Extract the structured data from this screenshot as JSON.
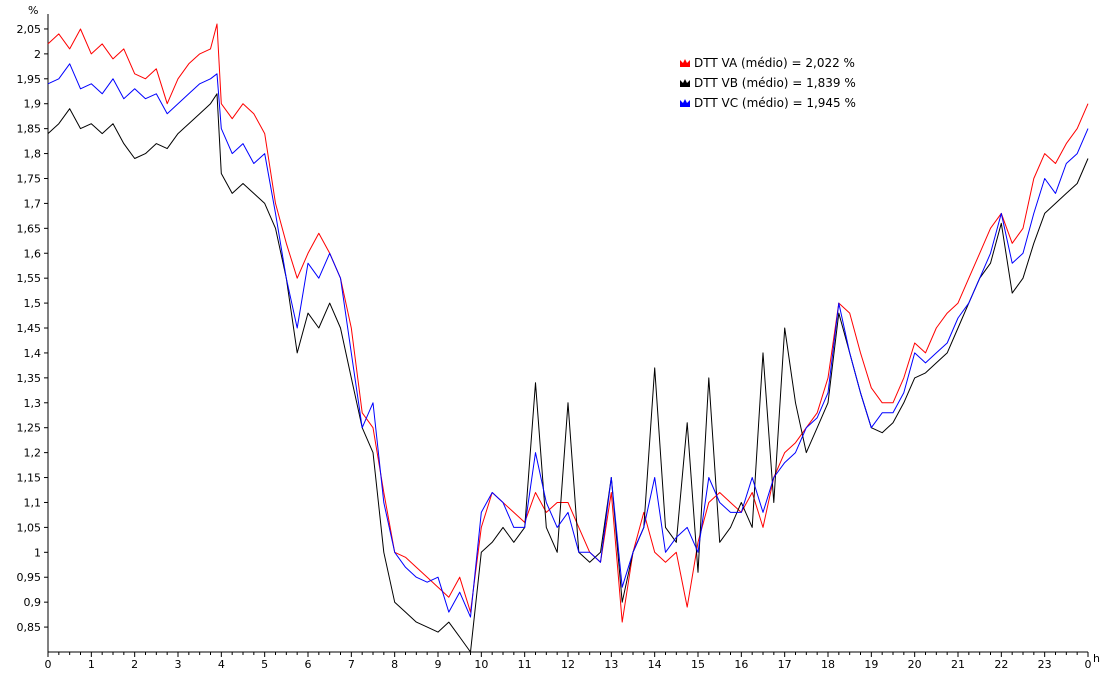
{
  "chart_data": {
    "type": "line",
    "title": "",
    "ylabel": "%",
    "xlabel": "h",
    "ylim": [
      0.8,
      2.08
    ],
    "xlim": [
      0,
      24
    ],
    "y_ticks": [
      0.85,
      0.9,
      0.95,
      1.0,
      1.05,
      1.1,
      1.15,
      1.2,
      1.25,
      1.3,
      1.35,
      1.4,
      1.45,
      1.5,
      1.55,
      1.6,
      1.65,
      1.7,
      1.75,
      1.8,
      1.85,
      1.9,
      1.95,
      2.0,
      2.05
    ],
    "y_tick_labels": [
      "0,85",
      "0,9",
      "0,95",
      "1",
      "1,05",
      "1,1",
      "1,15",
      "1,2",
      "1,25",
      "1,3",
      "1,35",
      "1,4",
      "1,45",
      "1,5",
      "1,55",
      "1,6",
      "1,65",
      "1,7",
      "1,75",
      "1,8",
      "1,85",
      "1,9",
      "1,95",
      "2",
      "2,05"
    ],
    "x_ticks": [
      0,
      1,
      2,
      3,
      4,
      5,
      6,
      7,
      8,
      9,
      10,
      11,
      12,
      13,
      14,
      15,
      16,
      17,
      18,
      19,
      20,
      21,
      22,
      23,
      24
    ],
    "x_tick_labels": [
      "0",
      "1",
      "2",
      "3",
      "4",
      "5",
      "6",
      "7",
      "8",
      "9",
      "10",
      "11",
      "12",
      "13",
      "14",
      "15",
      "16",
      "17",
      "18",
      "19",
      "20",
      "21",
      "22",
      "23",
      "0"
    ],
    "grid": false,
    "legend_position": "top-right",
    "series": [
      {
        "name": "DTT VA (médio) = 2,022 %",
        "color": "#ff0000",
        "points": [
          [
            0,
            2.02
          ],
          [
            0.25,
            2.04
          ],
          [
            0.5,
            2.01
          ],
          [
            0.75,
            2.05
          ],
          [
            1,
            2.0
          ],
          [
            1.25,
            2.02
          ],
          [
            1.5,
            1.99
          ],
          [
            1.75,
            2.01
          ],
          [
            2,
            1.96
          ],
          [
            2.25,
            1.95
          ],
          [
            2.5,
            1.97
          ],
          [
            2.75,
            1.9
          ],
          [
            3,
            1.95
          ],
          [
            3.25,
            1.98
          ],
          [
            3.5,
            2.0
          ],
          [
            3.75,
            2.01
          ],
          [
            3.9,
            2.06
          ],
          [
            4,
            1.9
          ],
          [
            4.25,
            1.87
          ],
          [
            4.5,
            1.9
          ],
          [
            4.75,
            1.88
          ],
          [
            5,
            1.84
          ],
          [
            5.25,
            1.7
          ],
          [
            5.5,
            1.62
          ],
          [
            5.75,
            1.55
          ],
          [
            6,
            1.6
          ],
          [
            6.25,
            1.64
          ],
          [
            6.5,
            1.6
          ],
          [
            6.75,
            1.55
          ],
          [
            7,
            1.45
          ],
          [
            7.25,
            1.28
          ],
          [
            7.5,
            1.25
          ],
          [
            7.75,
            1.12
          ],
          [
            8,
            1.0
          ],
          [
            8.25,
            0.99
          ],
          [
            8.5,
            0.97
          ],
          [
            8.75,
            0.95
          ],
          [
            9,
            0.93
          ],
          [
            9.25,
            0.91
          ],
          [
            9.5,
            0.95
          ],
          [
            9.75,
            0.88
          ],
          [
            10,
            1.05
          ],
          [
            10.25,
            1.12
          ],
          [
            10.5,
            1.1
          ],
          [
            10.75,
            1.08
          ],
          [
            11,
            1.06
          ],
          [
            11.25,
            1.12
          ],
          [
            11.5,
            1.08
          ],
          [
            11.75,
            1.1
          ],
          [
            12,
            1.1
          ],
          [
            12.25,
            1.05
          ],
          [
            12.5,
            1.0
          ],
          [
            12.75,
            0.98
          ],
          [
            13,
            1.12
          ],
          [
            13.25,
            0.86
          ],
          [
            13.5,
            1.0
          ],
          [
            13.75,
            1.08
          ],
          [
            14,
            1.0
          ],
          [
            14.25,
            0.98
          ],
          [
            14.5,
            1.0
          ],
          [
            14.75,
            0.89
          ],
          [
            15,
            1.02
          ],
          [
            15.25,
            1.1
          ],
          [
            15.5,
            1.12
          ],
          [
            15.75,
            1.1
          ],
          [
            16,
            1.08
          ],
          [
            16.25,
            1.12
          ],
          [
            16.5,
            1.05
          ],
          [
            16.75,
            1.15
          ],
          [
            17,
            1.2
          ],
          [
            17.25,
            1.22
          ],
          [
            17.5,
            1.25
          ],
          [
            17.75,
            1.28
          ],
          [
            18,
            1.35
          ],
          [
            18.25,
            1.5
          ],
          [
            18.5,
            1.48
          ],
          [
            18.75,
            1.4
          ],
          [
            19,
            1.33
          ],
          [
            19.25,
            1.3
          ],
          [
            19.5,
            1.3
          ],
          [
            19.75,
            1.35
          ],
          [
            20,
            1.42
          ],
          [
            20.25,
            1.4
          ],
          [
            20.5,
            1.45
          ],
          [
            20.75,
            1.48
          ],
          [
            21,
            1.5
          ],
          [
            21.25,
            1.55
          ],
          [
            21.5,
            1.6
          ],
          [
            21.75,
            1.65
          ],
          [
            22,
            1.68
          ],
          [
            22.25,
            1.62
          ],
          [
            22.5,
            1.65
          ],
          [
            22.75,
            1.75
          ],
          [
            23,
            1.8
          ],
          [
            23.25,
            1.78
          ],
          [
            23.5,
            1.82
          ],
          [
            23.75,
            1.85
          ],
          [
            24,
            1.9
          ]
        ]
      },
      {
        "name": "DTT VB (médio) = 1,839 %",
        "color": "#000000",
        "points": [
          [
            0,
            1.84
          ],
          [
            0.25,
            1.86
          ],
          [
            0.5,
            1.89
          ],
          [
            0.75,
            1.85
          ],
          [
            1,
            1.86
          ],
          [
            1.25,
            1.84
          ],
          [
            1.5,
            1.86
          ],
          [
            1.75,
            1.82
          ],
          [
            2,
            1.79
          ],
          [
            2.25,
            1.8
          ],
          [
            2.5,
            1.82
          ],
          [
            2.75,
            1.81
          ],
          [
            3,
            1.84
          ],
          [
            3.25,
            1.86
          ],
          [
            3.5,
            1.88
          ],
          [
            3.75,
            1.9
          ],
          [
            3.9,
            1.92
          ],
          [
            4,
            1.76
          ],
          [
            4.25,
            1.72
          ],
          [
            4.5,
            1.74
          ],
          [
            4.75,
            1.72
          ],
          [
            5,
            1.7
          ],
          [
            5.25,
            1.65
          ],
          [
            5.5,
            1.55
          ],
          [
            5.75,
            1.4
          ],
          [
            6,
            1.48
          ],
          [
            6.25,
            1.45
          ],
          [
            6.5,
            1.5
          ],
          [
            6.75,
            1.45
          ],
          [
            7,
            1.35
          ],
          [
            7.25,
            1.25
          ],
          [
            7.5,
            1.2
          ],
          [
            7.75,
            1.0
          ],
          [
            8,
            0.9
          ],
          [
            8.25,
            0.88
          ],
          [
            8.5,
            0.86
          ],
          [
            8.75,
            0.85
          ],
          [
            9,
            0.84
          ],
          [
            9.25,
            0.86
          ],
          [
            9.5,
            0.83
          ],
          [
            9.75,
            0.8
          ],
          [
            10,
            1.0
          ],
          [
            10.25,
            1.02
          ],
          [
            10.5,
            1.05
          ],
          [
            10.75,
            1.02
          ],
          [
            11,
            1.05
          ],
          [
            11.25,
            1.34
          ],
          [
            11.5,
            1.05
          ],
          [
            11.75,
            1.0
          ],
          [
            12,
            1.3
          ],
          [
            12.25,
            1.0
          ],
          [
            12.5,
            0.98
          ],
          [
            12.75,
            1.0
          ],
          [
            13,
            1.15
          ],
          [
            13.25,
            0.9
          ],
          [
            13.5,
            1.0
          ],
          [
            13.75,
            1.05
          ],
          [
            14,
            1.37
          ],
          [
            14.25,
            1.05
          ],
          [
            14.5,
            1.02
          ],
          [
            14.75,
            1.26
          ],
          [
            15,
            0.96
          ],
          [
            15.25,
            1.35
          ],
          [
            15.5,
            1.02
          ],
          [
            15.75,
            1.05
          ],
          [
            16,
            1.1
          ],
          [
            16.25,
            1.05
          ],
          [
            16.5,
            1.4
          ],
          [
            16.75,
            1.1
          ],
          [
            17,
            1.45
          ],
          [
            17.25,
            1.3
          ],
          [
            17.5,
            1.2
          ],
          [
            17.75,
            1.25
          ],
          [
            18,
            1.3
          ],
          [
            18.25,
            1.48
          ],
          [
            18.5,
            1.4
          ],
          [
            18.75,
            1.32
          ],
          [
            19,
            1.25
          ],
          [
            19.25,
            1.24
          ],
          [
            19.5,
            1.26
          ],
          [
            19.75,
            1.3
          ],
          [
            20,
            1.35
          ],
          [
            20.25,
            1.36
          ],
          [
            20.5,
            1.38
          ],
          [
            20.75,
            1.4
          ],
          [
            21,
            1.45
          ],
          [
            21.25,
            1.5
          ],
          [
            21.5,
            1.55
          ],
          [
            21.75,
            1.58
          ],
          [
            22,
            1.66
          ],
          [
            22.25,
            1.52
          ],
          [
            22.5,
            1.55
          ],
          [
            22.75,
            1.62
          ],
          [
            23,
            1.68
          ],
          [
            23.25,
            1.7
          ],
          [
            23.5,
            1.72
          ],
          [
            23.75,
            1.74
          ],
          [
            24,
            1.79
          ]
        ]
      },
      {
        "name": "DTT VC (médio) = 1,945 %",
        "color": "#0000ff",
        "points": [
          [
            0,
            1.94
          ],
          [
            0.25,
            1.95
          ],
          [
            0.5,
            1.98
          ],
          [
            0.75,
            1.93
          ],
          [
            1,
            1.94
          ],
          [
            1.25,
            1.92
          ],
          [
            1.5,
            1.95
          ],
          [
            1.75,
            1.91
          ],
          [
            2,
            1.93
          ],
          [
            2.25,
            1.91
          ],
          [
            2.5,
            1.92
          ],
          [
            2.75,
            1.88
          ],
          [
            3,
            1.9
          ],
          [
            3.25,
            1.92
          ],
          [
            3.5,
            1.94
          ],
          [
            3.75,
            1.95
          ],
          [
            3.9,
            1.96
          ],
          [
            4,
            1.85
          ],
          [
            4.25,
            1.8
          ],
          [
            4.5,
            1.82
          ],
          [
            4.75,
            1.78
          ],
          [
            5,
            1.8
          ],
          [
            5.25,
            1.68
          ],
          [
            5.5,
            1.55
          ],
          [
            5.75,
            1.45
          ],
          [
            6,
            1.58
          ],
          [
            6.25,
            1.55
          ],
          [
            6.5,
            1.6
          ],
          [
            6.75,
            1.55
          ],
          [
            7,
            1.4
          ],
          [
            7.25,
            1.25
          ],
          [
            7.5,
            1.3
          ],
          [
            7.75,
            1.1
          ],
          [
            8,
            1.0
          ],
          [
            8.25,
            0.97
          ],
          [
            8.5,
            0.95
          ],
          [
            8.75,
            0.94
          ],
          [
            9,
            0.95
          ],
          [
            9.25,
            0.88
          ],
          [
            9.5,
            0.92
          ],
          [
            9.75,
            0.87
          ],
          [
            10,
            1.08
          ],
          [
            10.25,
            1.12
          ],
          [
            10.5,
            1.1
          ],
          [
            10.75,
            1.05
          ],
          [
            11,
            1.05
          ],
          [
            11.25,
            1.2
          ],
          [
            11.5,
            1.1
          ],
          [
            11.75,
            1.05
          ],
          [
            12,
            1.08
          ],
          [
            12.25,
            1.0
          ],
          [
            12.5,
            1.0
          ],
          [
            12.75,
            0.98
          ],
          [
            13,
            1.15
          ],
          [
            13.25,
            0.93
          ],
          [
            13.5,
            1.0
          ],
          [
            13.75,
            1.05
          ],
          [
            14,
            1.15
          ],
          [
            14.25,
            1.0
          ],
          [
            14.5,
            1.03
          ],
          [
            14.75,
            1.05
          ],
          [
            15,
            1.0
          ],
          [
            15.25,
            1.15
          ],
          [
            15.5,
            1.1
          ],
          [
            15.75,
            1.08
          ],
          [
            16,
            1.08
          ],
          [
            16.25,
            1.15
          ],
          [
            16.5,
            1.08
          ],
          [
            16.75,
            1.15
          ],
          [
            17,
            1.18
          ],
          [
            17.25,
            1.2
          ],
          [
            17.5,
            1.25
          ],
          [
            17.75,
            1.27
          ],
          [
            18,
            1.32
          ],
          [
            18.25,
            1.5
          ],
          [
            18.5,
            1.4
          ],
          [
            18.75,
            1.32
          ],
          [
            19,
            1.25
          ],
          [
            19.25,
            1.28
          ],
          [
            19.5,
            1.28
          ],
          [
            19.75,
            1.32
          ],
          [
            20,
            1.4
          ],
          [
            20.25,
            1.38
          ],
          [
            20.5,
            1.4
          ],
          [
            20.75,
            1.42
          ],
          [
            21,
            1.47
          ],
          [
            21.25,
            1.5
          ],
          [
            21.5,
            1.55
          ],
          [
            21.75,
            1.6
          ],
          [
            22,
            1.68
          ],
          [
            22.25,
            1.58
          ],
          [
            22.5,
            1.6
          ],
          [
            22.75,
            1.68
          ],
          [
            23,
            1.75
          ],
          [
            23.25,
            1.72
          ],
          [
            23.5,
            1.78
          ],
          [
            23.75,
            1.8
          ],
          [
            24,
            1.85
          ]
        ]
      }
    ]
  }
}
